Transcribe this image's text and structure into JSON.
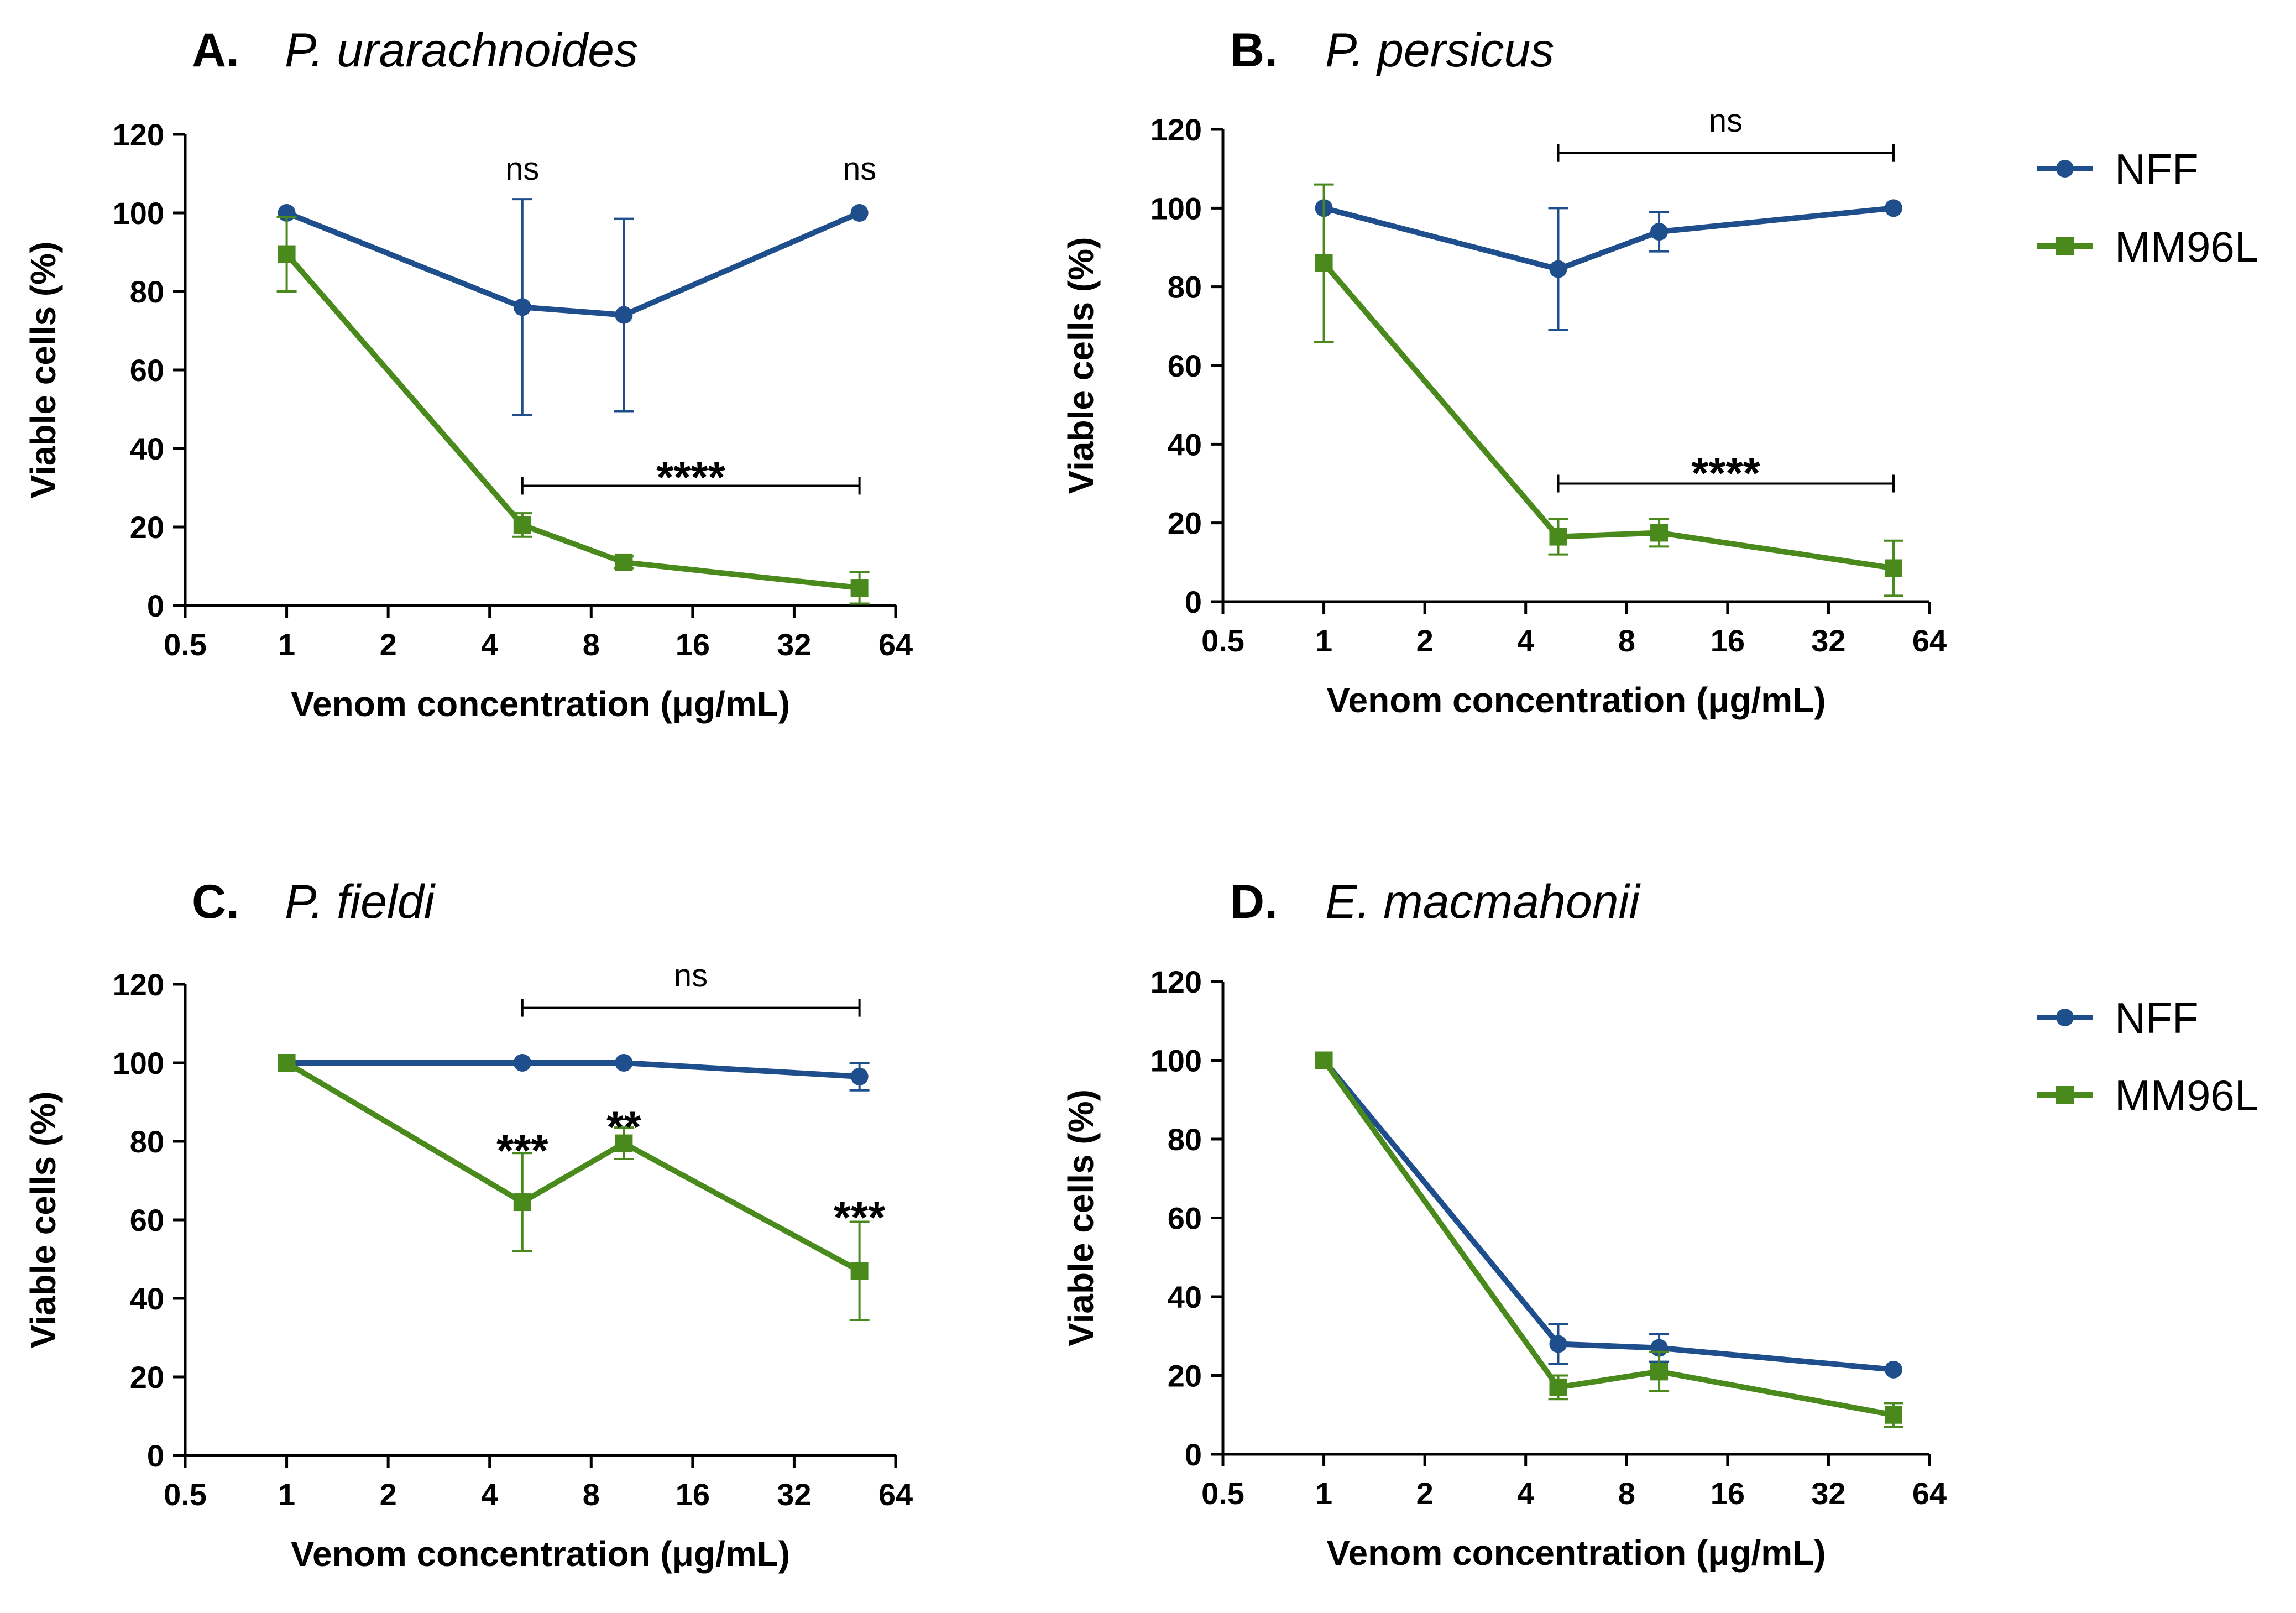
{
  "chart_data": [
    {
      "type": "line",
      "panel_letter": "A.",
      "title": "P. urarachnoides",
      "xlabel": "Venom concentration (μg/mL)",
      "ylabel": "Viable cells (%)",
      "x_scale": "log2",
      "xlim": [
        0.5,
        64
      ],
      "ylim": [
        0,
        120
      ],
      "xticks": [
        0.5,
        1,
        2,
        4,
        8,
        16,
        32,
        64
      ],
      "xtick_labels": [
        "0.5",
        "1",
        "2",
        "4",
        "8",
        "16",
        "32",
        "64"
      ],
      "yticks": [
        0,
        20,
        40,
        60,
        80,
        100,
        120
      ],
      "ytick_labels": [
        "0",
        "20",
        "40",
        "60",
        "80",
        "100",
        "120"
      ],
      "x": [
        1,
        5,
        10,
        50
      ],
      "series": [
        {
          "name": "NFF",
          "color": "#1f4e8c",
          "marker": "circle",
          "values": [
            100,
            76,
            74,
            100
          ],
          "errors": [
            0,
            27.5,
            24.5,
            0
          ]
        },
        {
          "name": "MM96L",
          "color": "#4a8a1c",
          "marker": "square",
          "values": [
            89.5,
            20.5,
            11,
            4.5
          ],
          "errors": [
            9.5,
            3,
            1.5,
            4
          ]
        }
      ],
      "annotations": [
        {
          "text": "ns",
          "x": 5,
          "y": 111,
          "style": "ns"
        },
        {
          "text": "ns",
          "x": 50,
          "y": 111,
          "style": "ns"
        },
        {
          "text": "****",
          "x": 15.8,
          "y": 33,
          "style": "star"
        }
      ],
      "brackets": [
        {
          "x1": 5,
          "x2": 50,
          "y": 30.5
        }
      ]
    },
    {
      "type": "line",
      "panel_letter": "B.",
      "title": "P. persicus",
      "xlabel": "Venom concentration (μg/mL)",
      "ylabel": "Viable cells (%)",
      "x_scale": "log2",
      "xlim": [
        0.5,
        64
      ],
      "ylim": [
        0,
        120
      ],
      "xticks": [
        0.5,
        1,
        2,
        4,
        8,
        16,
        32,
        64
      ],
      "xtick_labels": [
        "0.5",
        "1",
        "2",
        "4",
        "8",
        "16",
        "32",
        "64"
      ],
      "yticks": [
        0,
        20,
        40,
        60,
        80,
        100,
        120
      ],
      "ytick_labels": [
        "0",
        "20",
        "40",
        "60",
        "80",
        "100",
        "120"
      ],
      "x": [
        1,
        5,
        10,
        50
      ],
      "series": [
        {
          "name": "NFF",
          "color": "#1f4e8c",
          "marker": "circle",
          "values": [
            100,
            84.5,
            94,
            100
          ],
          "errors": [
            0,
            15.5,
            5,
            0
          ]
        },
        {
          "name": "MM96L",
          "color": "#4a8a1c",
          "marker": "square",
          "values": [
            86,
            16.5,
            17.5,
            8.5
          ],
          "errors": [
            20,
            4.5,
            3.5,
            7
          ]
        }
      ],
      "annotations": [
        {
          "text": "ns",
          "x": 15.8,
          "y": 122,
          "style": "ns"
        },
        {
          "text": "****",
          "x": 15.8,
          "y": 33,
          "style": "star"
        }
      ],
      "brackets": [
        {
          "x1": 5,
          "x2": 50,
          "y": 114
        },
        {
          "x1": 5,
          "x2": 50,
          "y": 30
        }
      ]
    },
    {
      "type": "line",
      "panel_letter": "C.",
      "title": "P. fieldi",
      "xlabel": "Venom concentration (μg/mL)",
      "ylabel": "Viable cells (%)",
      "x_scale": "log2",
      "xlim": [
        0.5,
        64
      ],
      "ylim": [
        0,
        120
      ],
      "xticks": [
        0.5,
        1,
        2,
        4,
        8,
        16,
        32,
        64
      ],
      "xtick_labels": [
        "0.5",
        "1",
        "2",
        "4",
        "8",
        "16",
        "32",
        "64"
      ],
      "yticks": [
        0,
        20,
        40,
        60,
        80,
        100,
        120
      ],
      "ytick_labels": [
        "0",
        "20",
        "40",
        "60",
        "80",
        "100",
        "120"
      ],
      "x": [
        1,
        5,
        10,
        50
      ],
      "series": [
        {
          "name": "NFF",
          "color": "#1f4e8c",
          "marker": "circle",
          "values": [
            100,
            100,
            100,
            96.5
          ],
          "errors": [
            0,
            0,
            0,
            3.5
          ]
        },
        {
          "name": "MM96L",
          "color": "#4a8a1c",
          "marker": "square",
          "values": [
            100,
            64.5,
            79.5,
            47
          ],
          "errors": [
            0,
            12.5,
            4,
            12.5
          ]
        }
      ],
      "annotations": [
        {
          "text": "ns",
          "x": 15.8,
          "y": 122,
          "style": "ns"
        },
        {
          "text": "***",
          "x": 5,
          "y": 78,
          "style": "star"
        },
        {
          "text": "**",
          "x": 10,
          "y": 84,
          "style": "star"
        },
        {
          "text": "***",
          "x": 50,
          "y": 61,
          "style": "star"
        }
      ],
      "brackets": [
        {
          "x1": 5,
          "x2": 50,
          "y": 114
        }
      ]
    },
    {
      "type": "line",
      "panel_letter": "D.",
      "title": "E. macmahonii",
      "xlabel": "Venom concentration (μg/mL)",
      "ylabel": "Viable cells (%)",
      "x_scale": "log2",
      "xlim": [
        0.5,
        64
      ],
      "ylim": [
        0,
        120
      ],
      "xticks": [
        0.5,
        1,
        2,
        4,
        8,
        16,
        32,
        64
      ],
      "xtick_labels": [
        "0.5",
        "1",
        "2",
        "4",
        "8",
        "16",
        "32",
        "64"
      ],
      "yticks": [
        0,
        20,
        40,
        60,
        80,
        100,
        120
      ],
      "ytick_labels": [
        "0",
        "20",
        "40",
        "60",
        "80",
        "100",
        "120"
      ],
      "x": [
        1,
        5,
        10,
        50
      ],
      "series": [
        {
          "name": "NFF",
          "color": "#1f4e8c",
          "marker": "circle",
          "values": [
            100,
            28,
            27,
            21.5
          ],
          "errors": [
            0,
            5,
            3.5,
            0
          ]
        },
        {
          "name": "MM96L",
          "color": "#4a8a1c",
          "marker": "square",
          "values": [
            100,
            17,
            21,
            10
          ],
          "errors": [
            0,
            3,
            5,
            3
          ]
        }
      ],
      "annotations": [],
      "brackets": []
    }
  ],
  "legends": [
    {
      "panel": "B",
      "entries": [
        {
          "name": "NFF",
          "color": "#1f4e8c",
          "marker": "circle"
        },
        {
          "name": "MM96L",
          "color": "#4a8a1c",
          "marker": "square"
        }
      ]
    },
    {
      "panel": "D",
      "entries": [
        {
          "name": "NFF",
          "color": "#1f4e8c",
          "marker": "circle"
        },
        {
          "name": "MM96L",
          "color": "#4a8a1c",
          "marker": "square"
        }
      ]
    }
  ]
}
